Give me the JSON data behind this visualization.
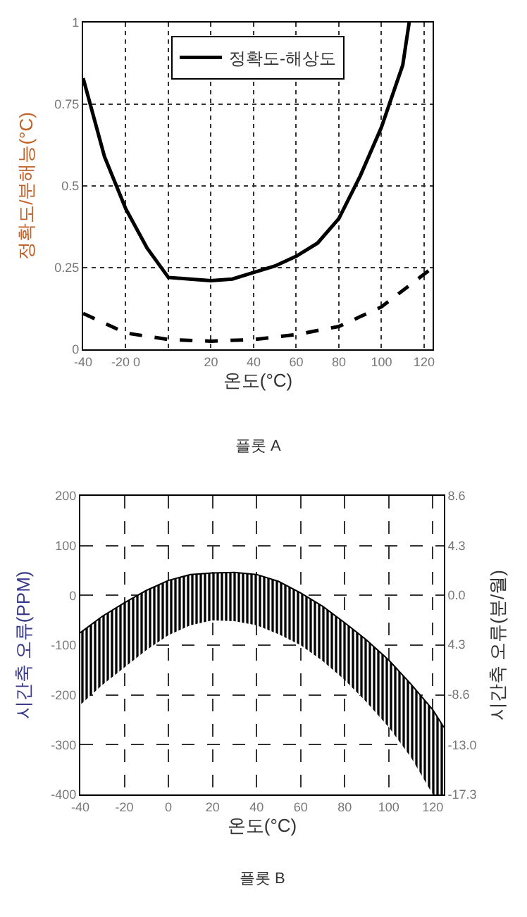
{
  "chart_data": [
    {
      "type": "line",
      "xlabel": "온도(°C)",
      "ylabel": "정확도/분해능(°C)",
      "annotations": [
        "플롯 A"
      ],
      "xlim": [
        -40,
        124
      ],
      "xticks": [
        -40,
        {
          "value": -20,
          "label": "-20 0"
        },
        {
          "value": 0,
          "label": null
        },
        20,
        40,
        60,
        80,
        100,
        120
      ],
      "ylim": [
        0,
        1
      ],
      "yticks": [
        0,
        0.25,
        0.5,
        0.75,
        1
      ],
      "grid": true,
      "legend": "top",
      "marker": "none",
      "series": [
        {
          "name": "정확도-해상도",
          "color": "#000000",
          "line_style": "solid",
          "x": [
            -40,
            -30,
            -20,
            -10,
            0,
            10,
            20,
            30,
            40,
            50,
            60,
            70,
            80,
            90,
            100,
            110,
            113
          ],
          "values": [
            0.83,
            0.59,
            0.43,
            0.31,
            0.22,
            0.215,
            0.21,
            0.215,
            0.235,
            0.255,
            0.285,
            0.325,
            0.4,
            0.53,
            0.68,
            0.87,
            1.0
          ]
        },
        {
          "color": "#000000",
          "line_style": "dashed",
          "x": [
            -40,
            -20,
            0,
            20,
            40,
            60,
            80,
            100,
            124
          ],
          "values": [
            0.11,
            0.05,
            0.03,
            0.025,
            0.03,
            0.045,
            0.07,
            0.13,
            0.25
          ]
        }
      ]
    },
    {
      "type": "line",
      "xlabel": "온도(°C)",
      "ylabel": "시간축 오류(PPM)",
      "y2label": "시간축 오류(분/월)",
      "annotations": [
        "플롯 B"
      ],
      "xlim": [
        -40,
        125
      ],
      "xticks": [
        -40,
        -20,
        0,
        20,
        40,
        60,
        80,
        100,
        120
      ],
      "ylim": [
        -400,
        200
      ],
      "yticks": [
        -400,
        -300,
        -200,
        -100,
        0,
        100,
        200
      ],
      "y2lim": [
        -17.3,
        8.6
      ],
      "y2ticks": [
        {
          "value": -17.3,
          "label": "-17.3"
        },
        {
          "value": -13,
          "label": "-13.0"
        },
        -8.6,
        {
          "value": -4.3,
          "label": "4.3"
        },
        {
          "value": 0,
          "label": "0.0"
        },
        4.3,
        8.6
      ],
      "grid": true,
      "legend": false,
      "series": [
        {
          "color": "#000000",
          "x": [
            -40,
            -30,
            -20,
            -10,
            0,
            10,
            20,
            30,
            40,
            50,
            60,
            70,
            80,
            90,
            100,
            110,
            120,
            125
          ],
          "lower": [
            -220,
            -180,
            -145,
            -110,
            -80,
            -60,
            -50,
            -52,
            -60,
            -78,
            -100,
            -132,
            -170,
            -215,
            -265,
            -325,
            -400,
            -400
          ],
          "values": [
            -75,
            -42,
            -15,
            10,
            30,
            42,
            45,
            46,
            42,
            28,
            5,
            -22,
            -55,
            -90,
            -130,
            -178,
            -230,
            -265
          ],
          "upper": [
            -75,
            -42,
            -15,
            10,
            30,
            42,
            45,
            46,
            42,
            28,
            5,
            -22,
            -55,
            -90,
            -130,
            -178,
            -230,
            -265
          ]
        }
      ]
    }
  ]
}
